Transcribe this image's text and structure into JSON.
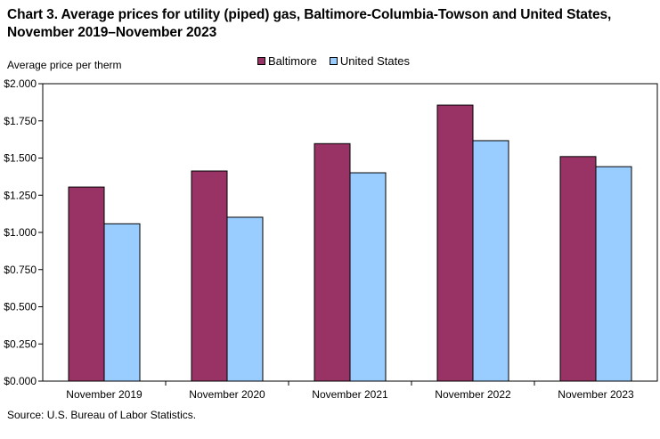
{
  "title_line1": "Chart 3. Average prices for utility (piped) gas, Baltimore-Columbia-Towson and United States,",
  "title_line2": "November 2019–November 2023",
  "source": "Source: U.S. Bureau of Labor Statistics.",
  "colors": {
    "baltimore": "#993366",
    "united_states": "#99ccff"
  },
  "chart_data": {
    "type": "bar",
    "title": "Chart 3. Average prices for utility (piped) gas, Baltimore-Columbia-Towson and United States, November 2019–November 2023",
    "ylabel": "Average price per therm",
    "xlabel": "",
    "ylim": [
      0,
      2
    ],
    "yticks": [
      "$0.000",
      "$0.250",
      "$0.500",
      "$0.750",
      "$1.000",
      "$1.250",
      "$1.500",
      "$1.750",
      "$2.000"
    ],
    "categories": [
      "November 2019",
      "November 2020",
      "November 2021",
      "November 2022",
      "November 2023"
    ],
    "series": [
      {
        "name": "Baltimore",
        "values": [
          1.305,
          1.413,
          1.597,
          1.856,
          1.51
        ]
      },
      {
        "name": "United States",
        "values": [
          1.058,
          1.102,
          1.401,
          1.617,
          1.442
        ]
      }
    ],
    "legend": "top-center",
    "grid": false
  }
}
